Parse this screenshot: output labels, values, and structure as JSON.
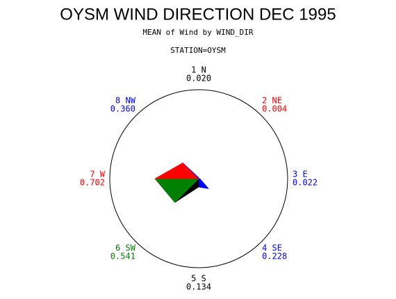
{
  "chart_data": {
    "type": "star",
    "title": "OYSM WIND DIRECTION DEC 1995",
    "subtitle": "MEAN of Wind by WIND_DIR",
    "group_label": "STATION=OYSM",
    "categories": [
      "1 N",
      "2 NE",
      "3 E",
      "4 SE",
      "5 S",
      "6 SW",
      "7 W",
      "8 NW"
    ],
    "values": [
      0.02,
      0.004,
      0.022,
      0.228,
      0.134,
      0.541,
      0.702,
      0.36
    ],
    "value_labels": [
      "0.020",
      "0.004",
      "0.022",
      "0.228",
      "0.134",
      "0.541",
      "0.702",
      "0.360"
    ],
    "colors": [
      "#000000",
      "#ff0000",
      "#0000ff",
      "#0000ff",
      "#000000",
      "#008000",
      "#ff0000",
      "#0000ff"
    ]
  }
}
